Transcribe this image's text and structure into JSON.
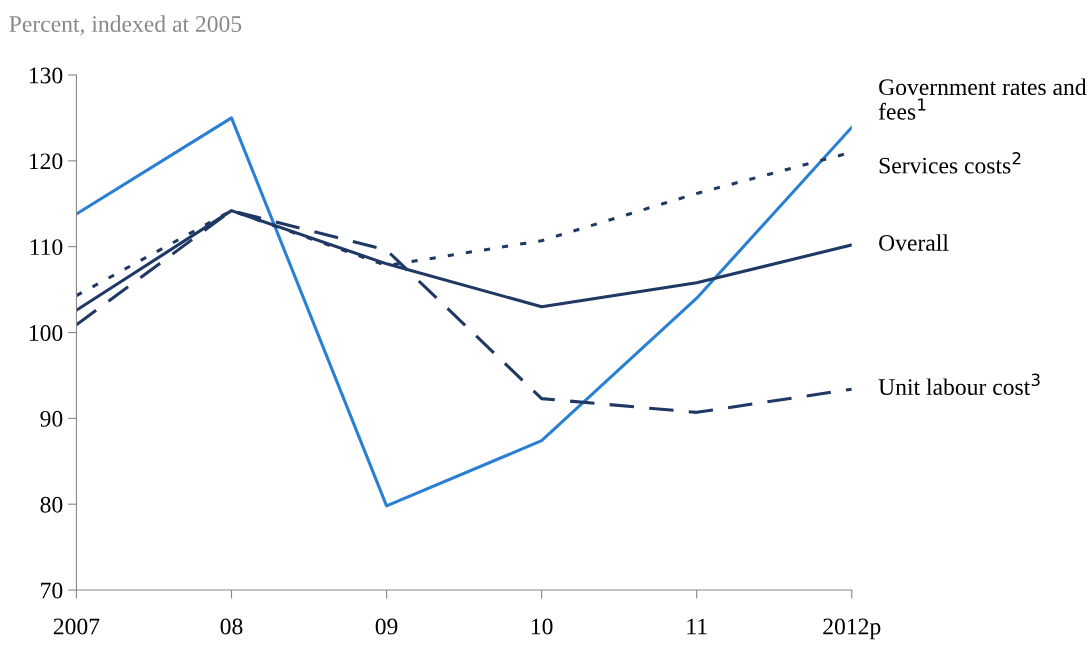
{
  "chart_data": {
    "type": "line",
    "ylabel": "Percent, indexed at 2005",
    "categories": [
      "2007",
      "08",
      "09",
      "10",
      "11",
      "2012p"
    ],
    "series": [
      {
        "name": "Government rates and fees$^{1}$",
        "color": "#2a7fd4",
        "line_style": "solid",
        "values": [
          113.8,
          125.0,
          79.8,
          87.4,
          104.0,
          123.9
        ]
      },
      {
        "name": "Services costs$^{2}$",
        "color": "#1f3864",
        "line_style": "dotted",
        "values": [
          104.3,
          114.2,
          107.8,
          110.7,
          116.2,
          121.0
        ]
      },
      {
        "name": "Overall",
        "color": "#1f3864",
        "line_style": "solid",
        "values": [
          102.6,
          114.2,
          108.0,
          103.0,
          105.8,
          110.2
        ]
      },
      {
        "name": "Unit labour cost$^{3}$",
        "color": "#1f3864",
        "line_style": "dashed",
        "values": [
          100.9,
          114.2,
          109.6,
          92.3,
          90.7,
          93.4
        ]
      }
    ],
    "ylim": [
      70,
      130
    ],
    "yticks": [
      70,
      80,
      90,
      100,
      110,
      120,
      130
    ],
    "grid": false,
    "legend": false,
    "marker": "none"
  }
}
